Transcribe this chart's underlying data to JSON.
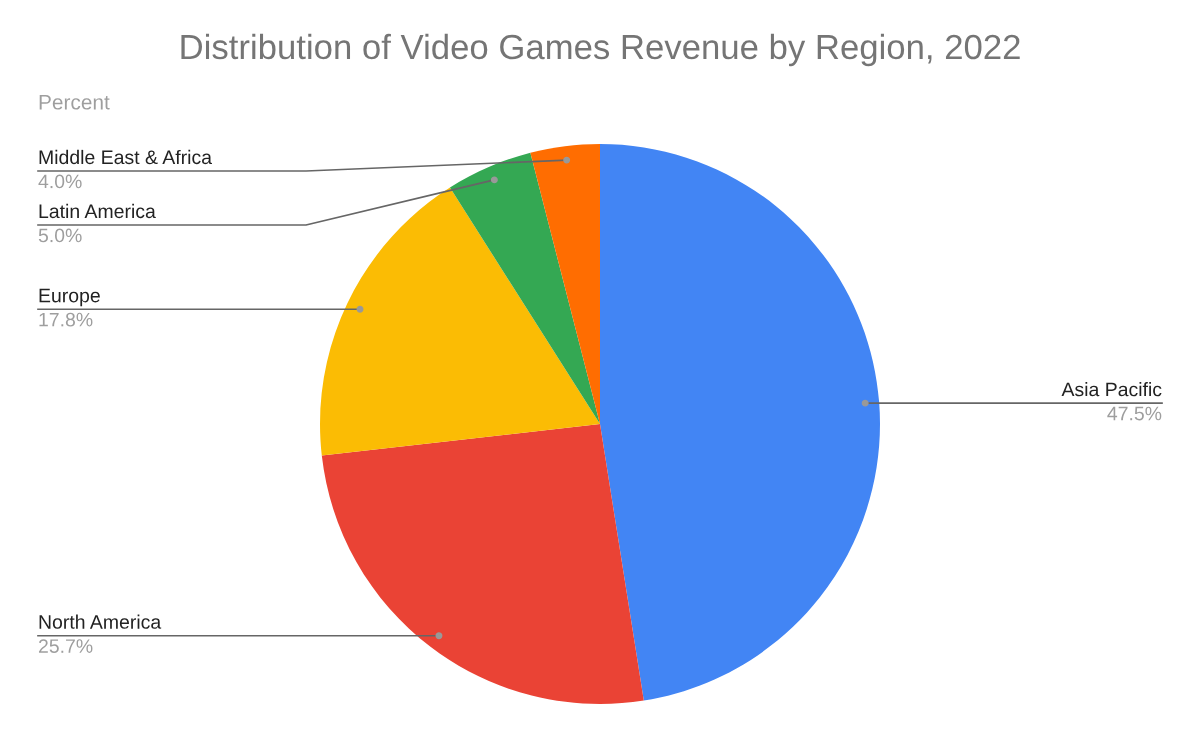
{
  "chart_data": {
    "type": "pie",
    "title": "Distribution of Video Games Revenue by Region, 2022",
    "subtitle": "Percent",
    "categories": [
      "Asia Pacific",
      "North America",
      "Europe",
      "Latin America",
      "Middle East & Africa"
    ],
    "values": [
      47.5,
      25.7,
      17.8,
      5.0,
      4.0
    ],
    "colors": [
      "#4285f4",
      "#ea4335",
      "#fbbc04",
      "#34a853",
      "#ff6d01"
    ],
    "value_labels": [
      "47.5%",
      "25.7%",
      "17.8%",
      "5.0%",
      "4.0%"
    ]
  }
}
